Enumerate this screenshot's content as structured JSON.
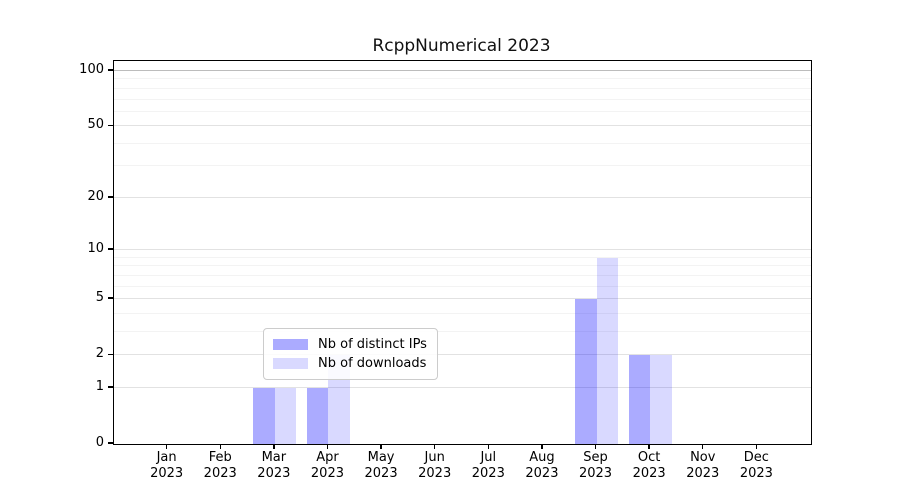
{
  "title": "RcppNumerical 2023",
  "chart_data": {
    "type": "bar",
    "title": "RcppNumerical 2023",
    "categories": [
      "Jan 2023",
      "Feb 2023",
      "Mar 2023",
      "Apr 2023",
      "May 2023",
      "Jun 2023",
      "Jul 2023",
      "Aug 2023",
      "Sep 2023",
      "Oct 2023",
      "Nov 2023",
      "Dec 2023"
    ],
    "series": [
      {
        "name": "Nb of distinct IPs",
        "color": "#0000ff54",
        "values": [
          0,
          0,
          1,
          1,
          0,
          0,
          0,
          0,
          5,
          2,
          0,
          0
        ]
      },
      {
        "name": "Nb of downloads",
        "color": "#0000ff26",
        "values": [
          0,
          0,
          1,
          2,
          0,
          0,
          0,
          0,
          9,
          2,
          0,
          0
        ]
      }
    ],
    "xlabel": "",
    "ylabel": "",
    "yscale": "log1p",
    "ylim": [
      0,
      113
    ],
    "y_major_ticks": [
      0,
      1,
      2,
      5,
      10,
      20,
      50,
      100
    ],
    "y_minor_gridlines": [
      3,
      4,
      6,
      7,
      8,
      9,
      30,
      40,
      60,
      70,
      80,
      90
    ],
    "grid": "horizontal",
    "legend_position": "inside-bottom-center"
  },
  "colors": {
    "bar_distinct_ips": "#aaaaf7",
    "bar_downloads": "#dbdbfa",
    "grid_major": "#e2e2e2",
    "grid_minor": "#f3f3f3",
    "grid_top": "#bcbcbc",
    "axis": "#000000",
    "legend_border": "#cccccc",
    "background": "#ffffff",
    "text": "#000000"
  }
}
